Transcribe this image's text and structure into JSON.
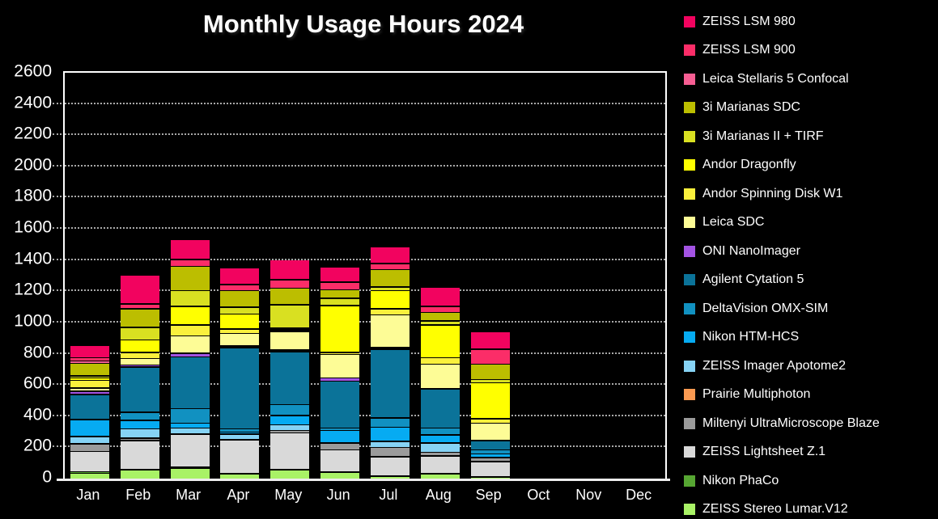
{
  "page": {
    "background": "#000000",
    "text_color": "#ffffff"
  },
  "chart_data": {
    "type": "bar",
    "stacked": true,
    "title": "Monthly Usage Hours 2024",
    "xlabel": "",
    "ylabel": "",
    "categories": [
      "Jan",
      "Feb",
      "Mar",
      "Apr",
      "May",
      "Jun",
      "Jul",
      "Aug",
      "Sep",
      "Oct",
      "Nov",
      "Dec"
    ],
    "y_axis": {
      "min": 0,
      "max": 2600,
      "step": 200,
      "tick_labels": [
        "0",
        "200",
        "400",
        "600",
        "800",
        "1000",
        "1200",
        "1400",
        "1600",
        "1800",
        "2000",
        "2200",
        "2400",
        "2600"
      ]
    },
    "grid": "horizontal dotted",
    "legend_position": "right",
    "monthly_totals_approx": [
      850,
      1300,
      1530,
      1345,
      1400,
      1350,
      1480,
      1220,
      940,
      0,
      0,
      0
    ],
    "series_bottom_to_top": [
      {
        "name": "ZEISS Stereo Lumar.V12",
        "color": "#A9F266",
        "values": [
          30,
          50,
          60,
          25,
          50,
          35,
          10,
          25,
          5,
          0,
          0,
          0
        ]
      },
      {
        "name": "Nikon PhaCo",
        "color": "#56A632",
        "values": [
          10,
          5,
          10,
          5,
          5,
          5,
          5,
          5,
          5,
          0,
          0,
          0
        ]
      },
      {
        "name": "ZEISS Lightsheet Z.1",
        "color": "#D9D9D9",
        "values": [
          130,
          185,
          210,
          215,
          235,
          140,
          120,
          110,
          95,
          0,
          0,
          0
        ]
      },
      {
        "name": "Miltenyi UltraMicroscope Blaze",
        "color": "#9B9B9B",
        "values": [
          50,
          15,
          0,
          0,
          15,
          45,
          60,
          25,
          25,
          0,
          0,
          0
        ]
      },
      {
        "name": "Prairie Multiphoton",
        "color": "#FB9A51",
        "values": [
          0,
          0,
          0,
          0,
          0,
          0,
          0,
          0,
          0,
          0,
          0,
          0
        ]
      },
      {
        "name": "ZEISS Imager Apotome2",
        "color": "#86D3F5",
        "values": [
          45,
          60,
          40,
          35,
          35,
          0,
          40,
          60,
          0,
          0,
          0,
          0
        ]
      },
      {
        "name": "Nikon HTM-HCS",
        "color": "#06ABF2",
        "values": [
          110,
          55,
          30,
          15,
          60,
          80,
          90,
          50,
          25,
          0,
          0,
          0
        ]
      },
      {
        "name": "DeltaVision OMX-SIM",
        "color": "#1191C1",
        "values": [
          0,
          50,
          95,
          20,
          70,
          15,
          60,
          45,
          25,
          0,
          0,
          0
        ]
      },
      {
        "name": "Agilent Cytation 5",
        "color": "#0B7399",
        "values": [
          160,
          290,
          330,
          520,
          340,
          300,
          440,
          250,
          60,
          0,
          0,
          0
        ]
      },
      {
        "name": "ONI NanoImager",
        "color": "#A353E3",
        "values": [
          20,
          15,
          25,
          10,
          10,
          20,
          10,
          0,
          0,
          0,
          0,
          0
        ]
      },
      {
        "name": "Leica SDC",
        "color": "#FDFC96",
        "values": [
          20,
          40,
          110,
          80,
          120,
          150,
          210,
          160,
          110,
          0,
          0,
          0
        ]
      },
      {
        "name": "Andor Spinning Disk W1",
        "color": "#FAF03C",
        "values": [
          50,
          40,
          70,
          30,
          10,
          15,
          40,
          40,
          30,
          0,
          0,
          0
        ]
      },
      {
        "name": "Andor Dragonfly",
        "color": "#FFFF00",
        "values": [
          15,
          80,
          120,
          95,
          10,
          300,
          115,
          210,
          230,
          0,
          0,
          0
        ]
      },
      {
        "name": "3i Marianas II + TIRF",
        "color": "#D9E021",
        "values": [
          15,
          80,
          100,
          45,
          150,
          45,
          25,
          25,
          20,
          0,
          0,
          0
        ]
      },
      {
        "name": "3i Marianas SDC",
        "color": "#BCBE00",
        "values": [
          80,
          120,
          155,
          105,
          105,
          55,
          110,
          55,
          100,
          0,
          0,
          0
        ]
      },
      {
        "name": "Leica Stellaris 5 Confocal",
        "color": "#F75E93",
        "values": [
          15,
          0,
          0,
          0,
          0,
          0,
          0,
          0,
          0,
          0,
          0,
          0
        ]
      },
      {
        "name": "ZEISS LSM 900",
        "color": "#FB2D68",
        "values": [
          20,
          30,
          45,
          40,
          55,
          50,
          40,
          40,
          95,
          0,
          0,
          0
        ]
      },
      {
        "name": "ZEISS LSM 980",
        "color": "#F2035F",
        "values": [
          80,
          185,
          130,
          105,
          130,
          95,
          105,
          120,
          115,
          0,
          0,
          0
        ]
      }
    ]
  }
}
